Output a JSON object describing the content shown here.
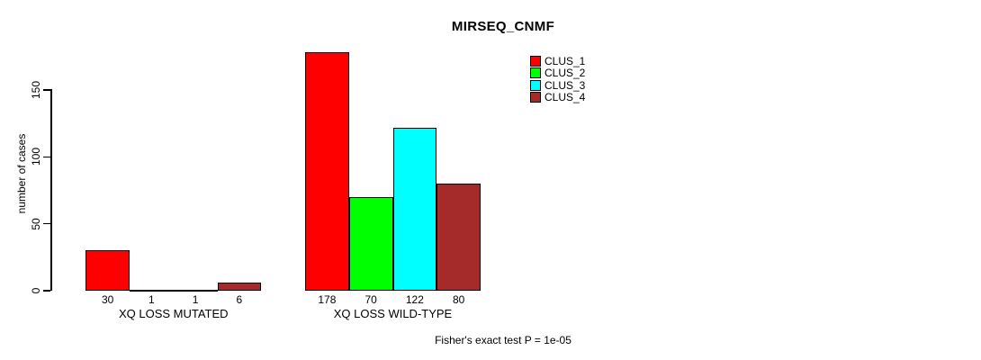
{
  "title": "MIRSEQ_CNMF",
  "ylabel": "number of cases",
  "footer": "Fisher's exact test P = 1e-05",
  "legend": {
    "items": [
      {
        "label": "CLUS_1",
        "color": "#FF0000"
      },
      {
        "label": "CLUS_2",
        "color": "#00FF00"
      },
      {
        "label": "CLUS_3",
        "color": "#00FFFF"
      },
      {
        "label": "CLUS_4",
        "color": "#A52A2A"
      }
    ]
  },
  "chart_data": {
    "type": "bar",
    "title": "MIRSEQ_CNMF",
    "xlabel": "",
    "ylabel": "number of cases",
    "categories": [
      "XQ LOSS MUTATED",
      "XQ LOSS WILD-TYPE"
    ],
    "series": [
      {
        "name": "CLUS_1",
        "color": "#FF0000",
        "values": [
          30,
          178
        ]
      },
      {
        "name": "CLUS_2",
        "color": "#00FF00",
        "values": [
          1,
          70
        ]
      },
      {
        "name": "CLUS_3",
        "color": "#00FFFF",
        "values": [
          1,
          122
        ]
      },
      {
        "name": "CLUS_4",
        "color": "#A52A2A",
        "values": [
          6,
          80
        ]
      }
    ],
    "bar_value_labels": [
      [
        "30",
        "1",
        "1",
        "6"
      ],
      [
        "178",
        "70",
        "122",
        "80"
      ]
    ],
    "yticks": [
      0,
      50,
      100,
      150
    ],
    "ylim": [
      0,
      185
    ],
    "grid": false,
    "legend_position": "top-right",
    "annotation": "Fisher's exact test P = 1e-05"
  }
}
